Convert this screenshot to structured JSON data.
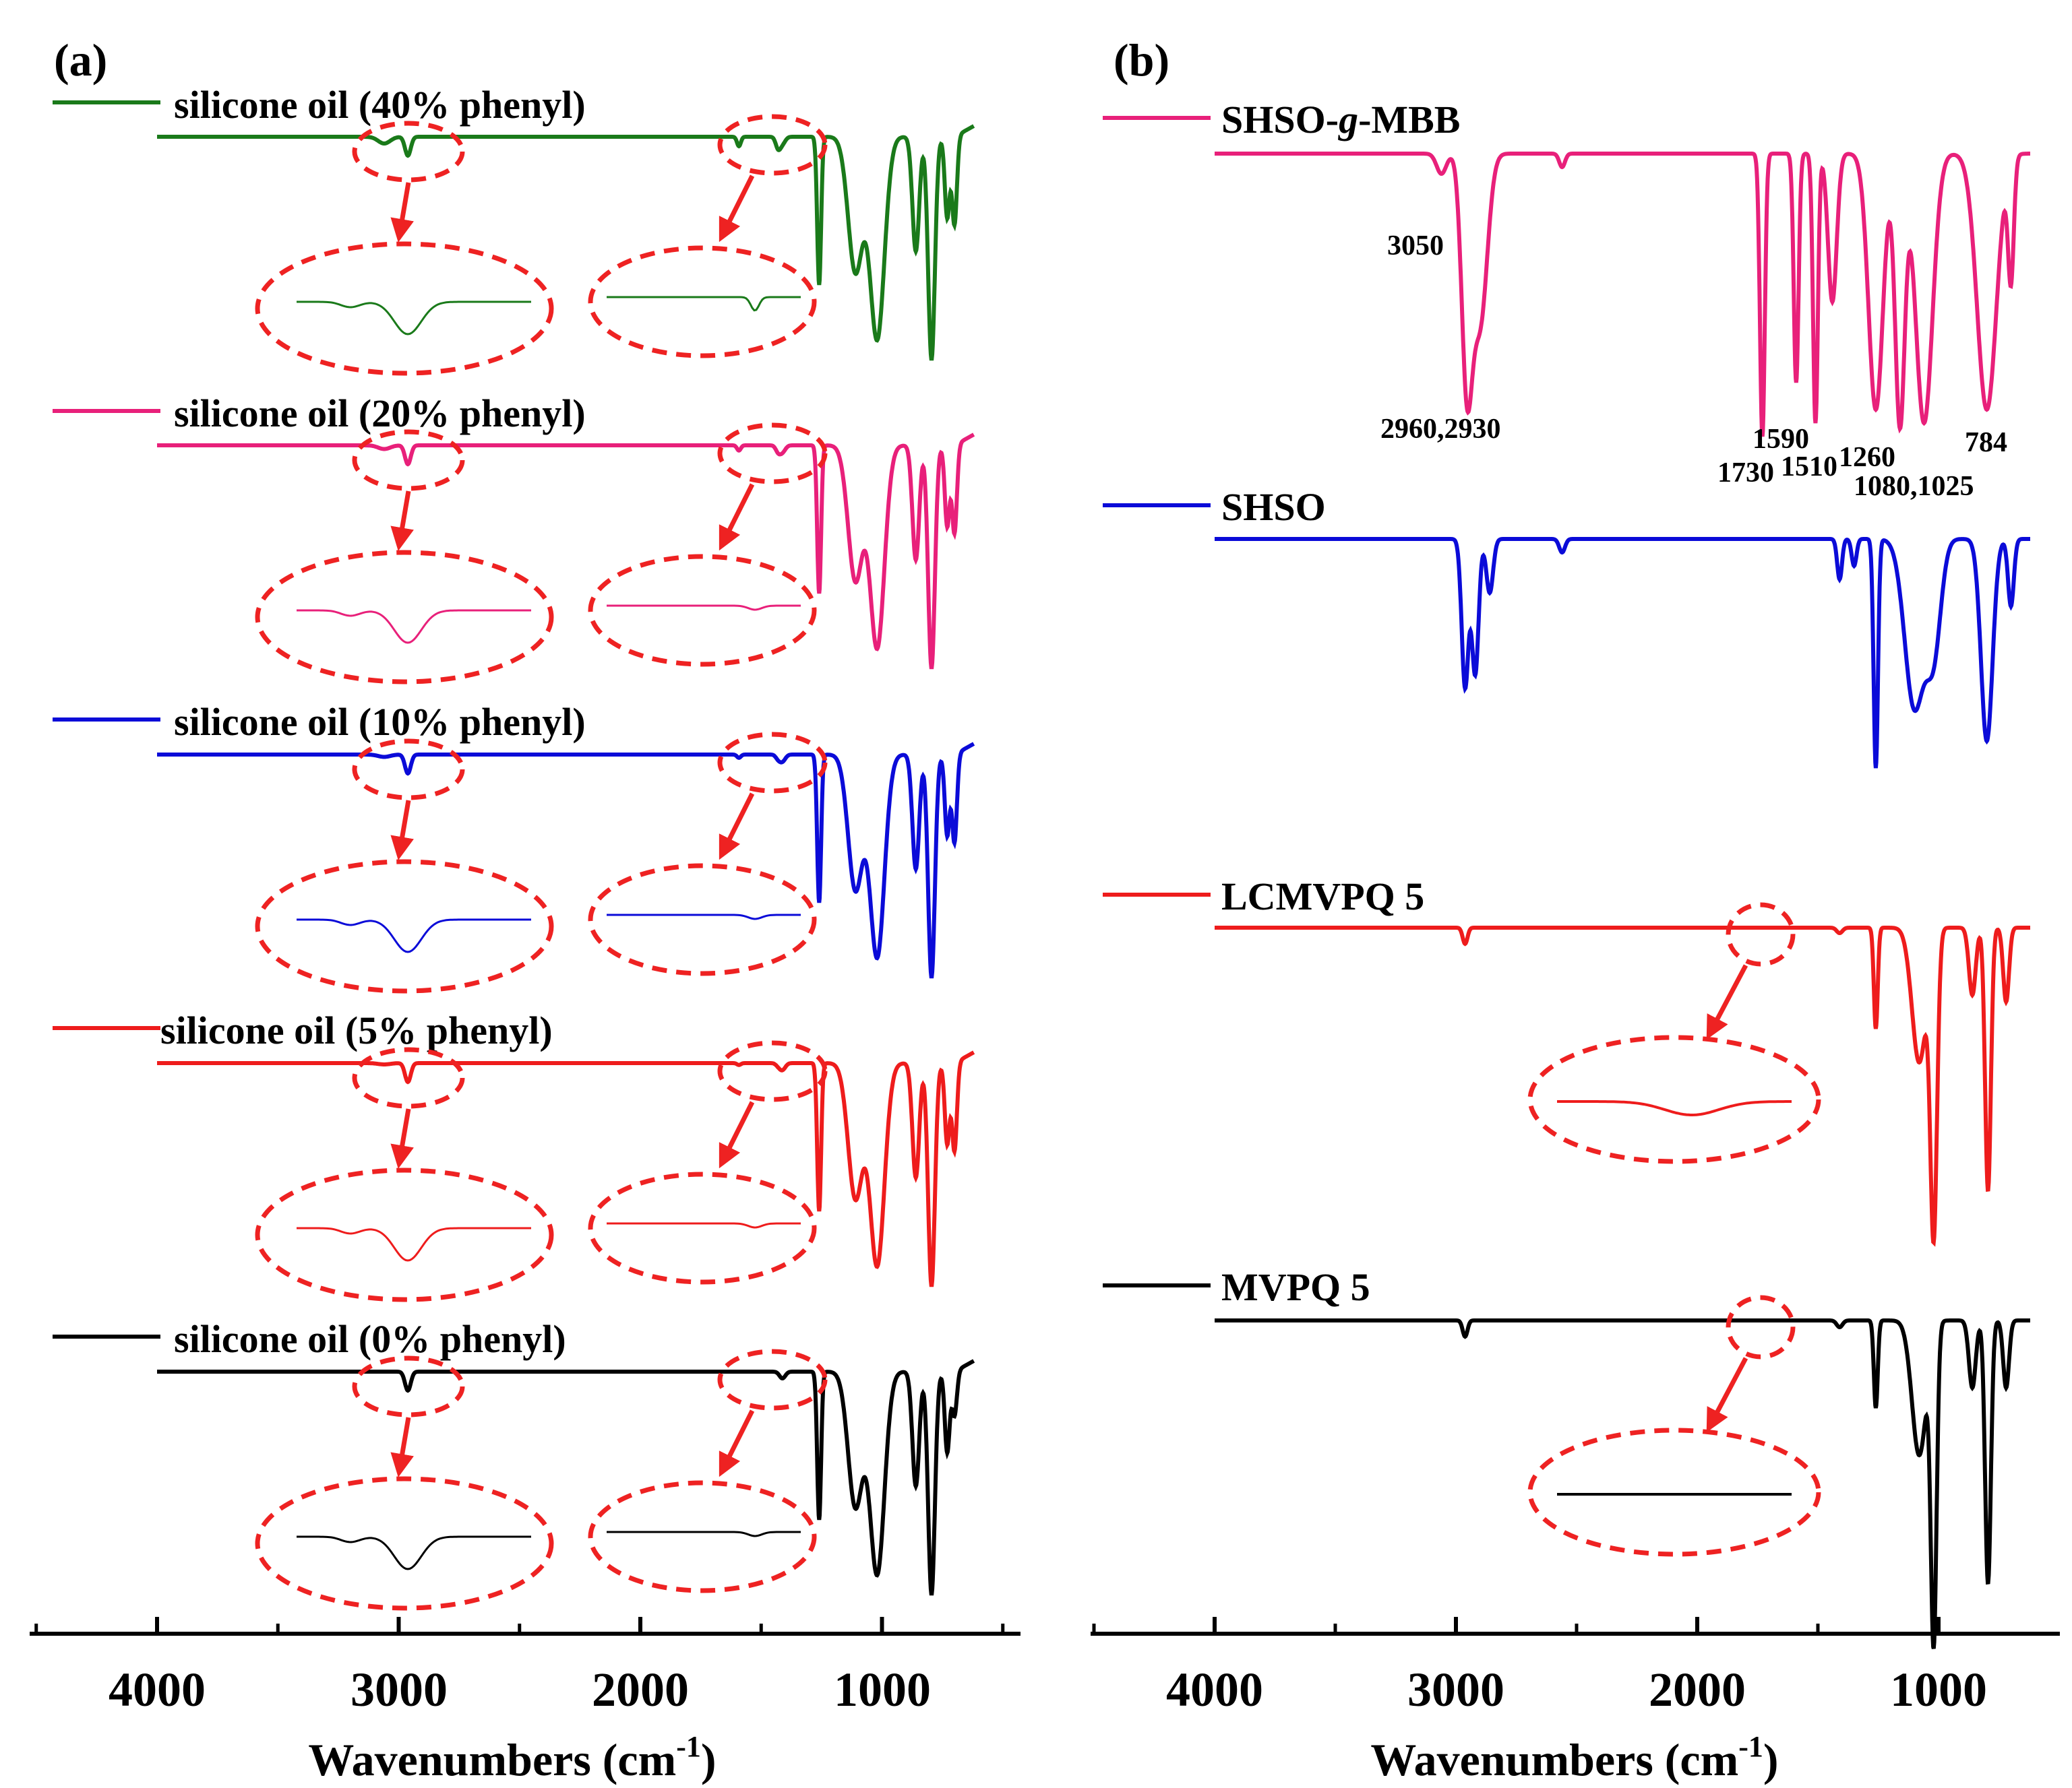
{
  "chart_data": [
    {
      "panel": "(a)",
      "type": "line",
      "xlabel": "Wavenumbers (cm-1)",
      "xlabel_main": "Wavenumbers (cm",
      "xlabel_sup": "-1",
      "xlabel_close": ")",
      "xlim": [
        4500,
        500
      ],
      "xticks": [
        "4000",
        "3000",
        "2000",
        "1000"
      ],
      "series": [
        {
          "name": "silicone oil (40% phenyl)",
          "color": "#1a7a1a",
          "peaks_cm1": [
            2960,
            1590,
            1430,
            1260,
            1120,
            1020,
            840,
            790,
            730,
            700
          ]
        },
        {
          "name": "silicone oil (20% phenyl)",
          "color": "#e8207a",
          "peaks_cm1": [
            2960,
            1430,
            1260,
            1120,
            1020,
            840,
            790,
            730,
            700
          ]
        },
        {
          "name": "silicone oil (10% phenyl)",
          "color": "#0b0bd8",
          "peaks_cm1": [
            2960,
            1410,
            1260,
            1080,
            1020,
            840,
            790,
            730
          ]
        },
        {
          "name": "silicone oil (5% phenyl)",
          "color": "#ee1c1c",
          "peaks_cm1": [
            2960,
            1410,
            1260,
            1080,
            1020,
            840,
            790,
            730
          ]
        },
        {
          "name": "silicone oil (0% phenyl)",
          "color": "#000000",
          "peaks_cm1": [
            2960,
            1410,
            1260,
            1080,
            1020,
            840,
            790,
            700
          ]
        }
      ]
    },
    {
      "panel": "(b)",
      "type": "line",
      "xlabel": "Wavenumbers (cm-1)",
      "xlabel_main": "Wavenumbers (cm",
      "xlabel_sup": "-1",
      "xlabel_close": ")",
      "xlim": [
        4500,
        500
      ],
      "xticks": [
        "4000",
        "3000",
        "2000",
        "1000"
      ],
      "series": [
        {
          "name_pre": "SHSO-",
          "name_ital": "g",
          "name_post": "-MBB",
          "color": "#e8207a",
          "annotations": [
            "3050",
            "2960,2930",
            "1590",
            "1730",
            "1510",
            "1260",
            "1080,1025",
            "784"
          ]
        },
        {
          "name": "SHSO",
          "color": "#0b0bd8"
        },
        {
          "name": "LCMVPQ 5",
          "color": "#ee1c1c"
        },
        {
          "name": "MVPQ 5",
          "color": "#000000"
        }
      ]
    }
  ]
}
